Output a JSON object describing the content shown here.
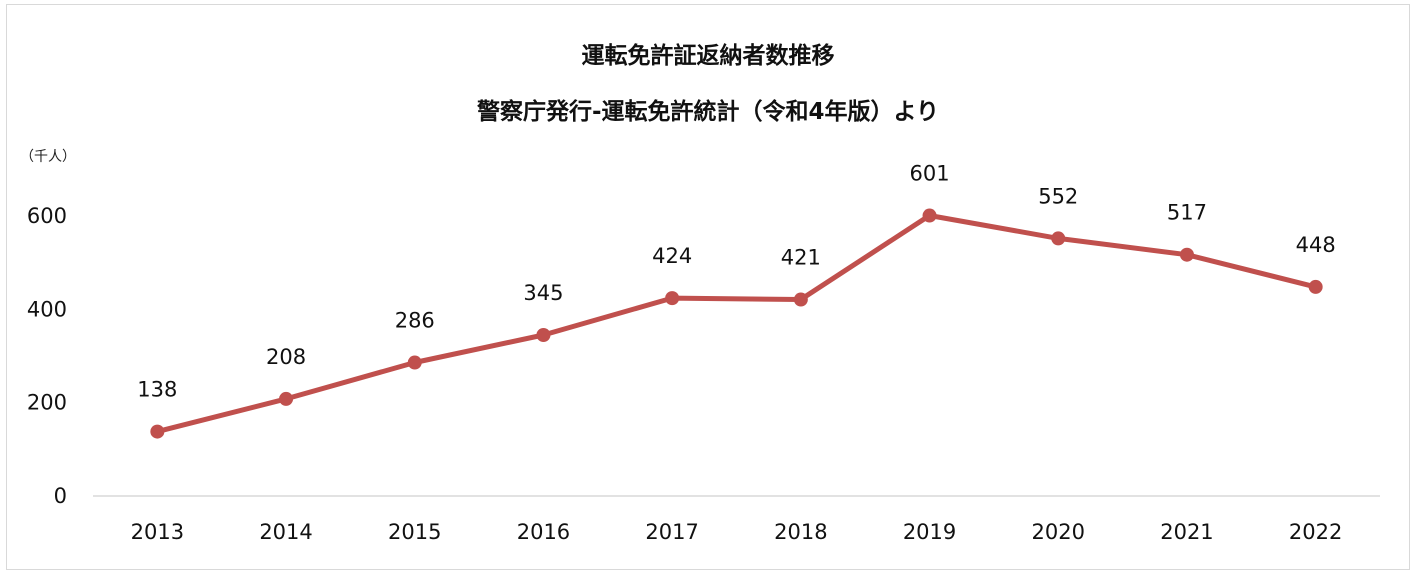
{
  "chart_data": {
    "type": "line",
    "title": "運転免許証返納者数推移",
    "subtitle": "警察庁発行-運転免許統計（令和4年版）より",
    "ylabel": "（千人）",
    "xlabel": "",
    "categories": [
      "2013",
      "2014",
      "2015",
      "2016",
      "2017",
      "2018",
      "2019",
      "2020",
      "2021",
      "2022"
    ],
    "series": [
      {
        "values": [
          138,
          208,
          286,
          345,
          424,
          421,
          601,
          552,
          517,
          448
        ]
      }
    ],
    "ylim": [
      0,
      600
    ],
    "yticks": [
      0,
      200,
      400,
      600
    ],
    "grid": false,
    "legend": "none",
    "color": "#c0504d"
  }
}
